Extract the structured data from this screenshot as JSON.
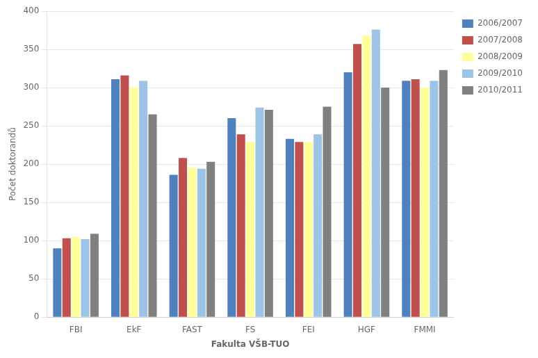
{
  "chart_data": {
    "type": "bar",
    "xlabel": "Fakulta VŠB-TUO",
    "ylabel": "Počet doktorandů",
    "categories": [
      "FBI",
      "EkF",
      "FAST",
      "FS",
      "FEI",
      "HGF",
      "FMMI"
    ],
    "series": [
      {
        "name": "2006/2007",
        "color": "#4F81BD",
        "values": [
          90,
          311,
          186,
          260,
          233,
          320,
          309
        ]
      },
      {
        "name": "2007/2008",
        "color": "#C0504D",
        "values": [
          103,
          316,
          208,
          239,
          229,
          357,
          311
        ]
      },
      {
        "name": "2008/2009",
        "color": "#FFFF99",
        "values": [
          105,
          300,
          195,
          229,
          229,
          368,
          300
        ]
      },
      {
        "name": "2009/2010",
        "color": "#9DC3E6",
        "values": [
          102,
          309,
          194,
          274,
          239,
          376,
          309
        ]
      },
      {
        "name": "2010/2011",
        "color": "#808080",
        "values": [
          109,
          265,
          203,
          271,
          275,
          300,
          323
        ]
      }
    ],
    "ylim": [
      0,
      400
    ],
    "yticks": [
      0,
      50,
      100,
      150,
      200,
      250,
      300,
      350,
      400
    ],
    "grid": true,
    "legend": "right"
  }
}
